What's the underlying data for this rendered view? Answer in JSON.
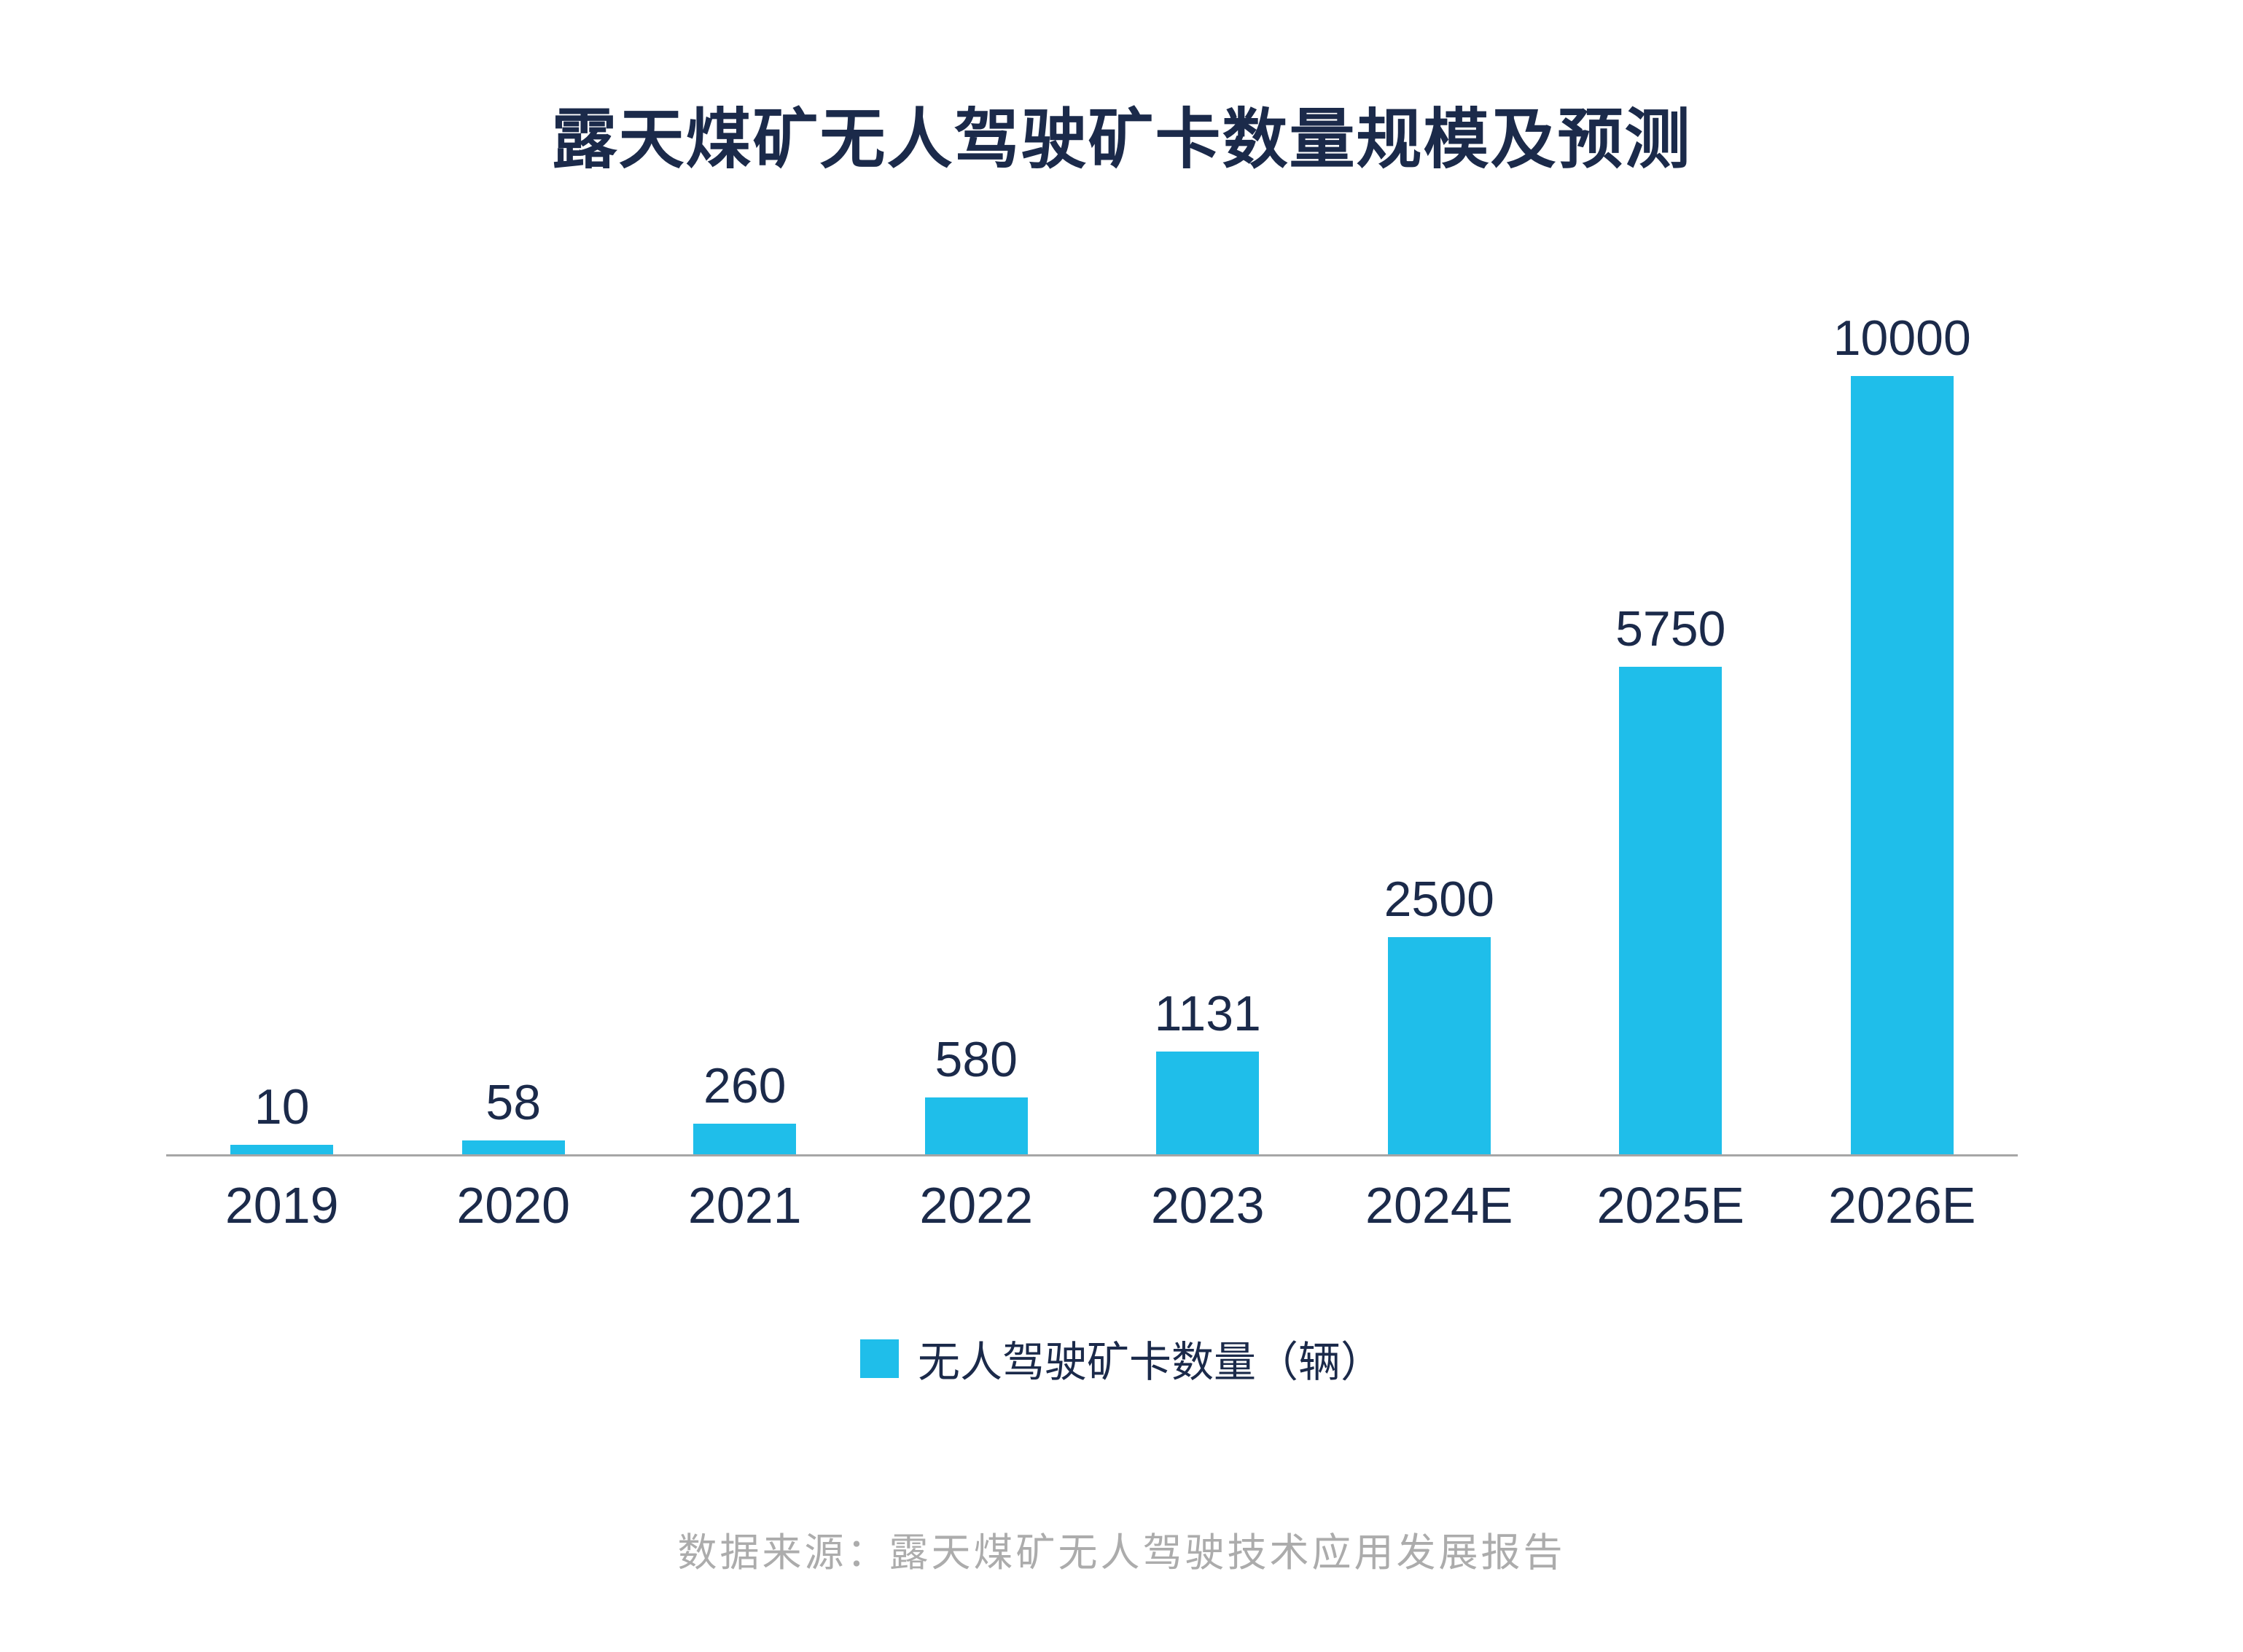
{
  "title": "露天煤矿无人驾驶矿卡数量规模及预测",
  "chart_data": {
    "type": "bar",
    "title": "露天煤矿无人驾驶矿卡数量规模及预测",
    "categories": [
      "2019",
      "2020",
      "2021",
      "2022",
      "2023",
      "2024E",
      "2025E",
      "2026E"
    ],
    "values": [
      10,
      58,
      260,
      580,
      1131,
      2500,
      5750,
      10000
    ],
    "series_name": "无人驾驶矿卡数量（辆）",
    "xlabel": "",
    "ylabel": "",
    "ylim": [
      0,
      10000
    ],
    "grid": false,
    "value_labels": true,
    "legend_position": "bottom",
    "bar_color": "#1fbeea",
    "text_color": "#1b2a4a",
    "axis_line_color": "#a6a6a6"
  },
  "legend": {
    "label": "无人驾驶矿卡数量（辆）"
  },
  "source": {
    "text": "数据来源：露天煤矿无人驾驶技术应用发展报告"
  }
}
